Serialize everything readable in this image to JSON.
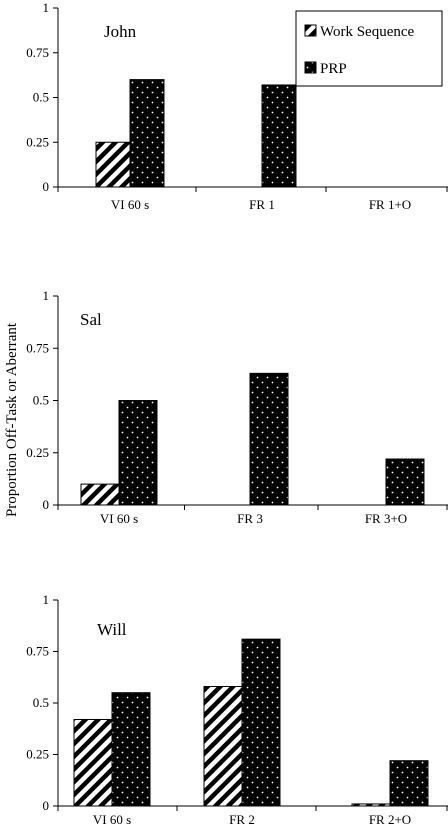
{
  "chart_data": [
    {
      "type": "bar",
      "title": "John",
      "categories": [
        "VI 60 s",
        "FR 1",
        "FR 1+O"
      ],
      "series": [
        {
          "name": "Work Sequence",
          "values": [
            0.25,
            0,
            0
          ]
        },
        {
          "name": "PRP",
          "values": [
            0.6,
            0.57,
            0
          ]
        }
      ],
      "ylim": [
        0,
        1
      ],
      "yticks": [
        "0",
        "0.25",
        "0.5",
        "0.75",
        "1"
      ],
      "legend": "top-right"
    },
    {
      "type": "bar",
      "title": "Sal",
      "categories": [
        "VI 60 s",
        "FR 3",
        "FR 3+O"
      ],
      "series": [
        {
          "name": "Work Sequence",
          "values": [
            0.1,
            0,
            0
          ]
        },
        {
          "name": "PRP",
          "values": [
            0.5,
            0.63,
            0.22
          ]
        }
      ],
      "ylim": [
        0,
        1
      ],
      "yticks": [
        "0",
        "0.25",
        "0.5",
        "0.75",
        "1"
      ],
      "ylabel": "Proportion Off-Task or Aberrant"
    },
    {
      "type": "bar",
      "title": "Will",
      "categories": [
        "VI 60 s",
        "FR 2",
        "FR 2+O"
      ],
      "series": [
        {
          "name": "Work Sequence",
          "values": [
            0.42,
            0.58,
            0.01
          ]
        },
        {
          "name": "PRP",
          "values": [
            0.55,
            0.81,
            0.22
          ]
        }
      ],
      "ylim": [
        0,
        1
      ],
      "yticks": [
        "0",
        "0.25",
        "0.5",
        "0.75",
        "1"
      ]
    }
  ]
}
